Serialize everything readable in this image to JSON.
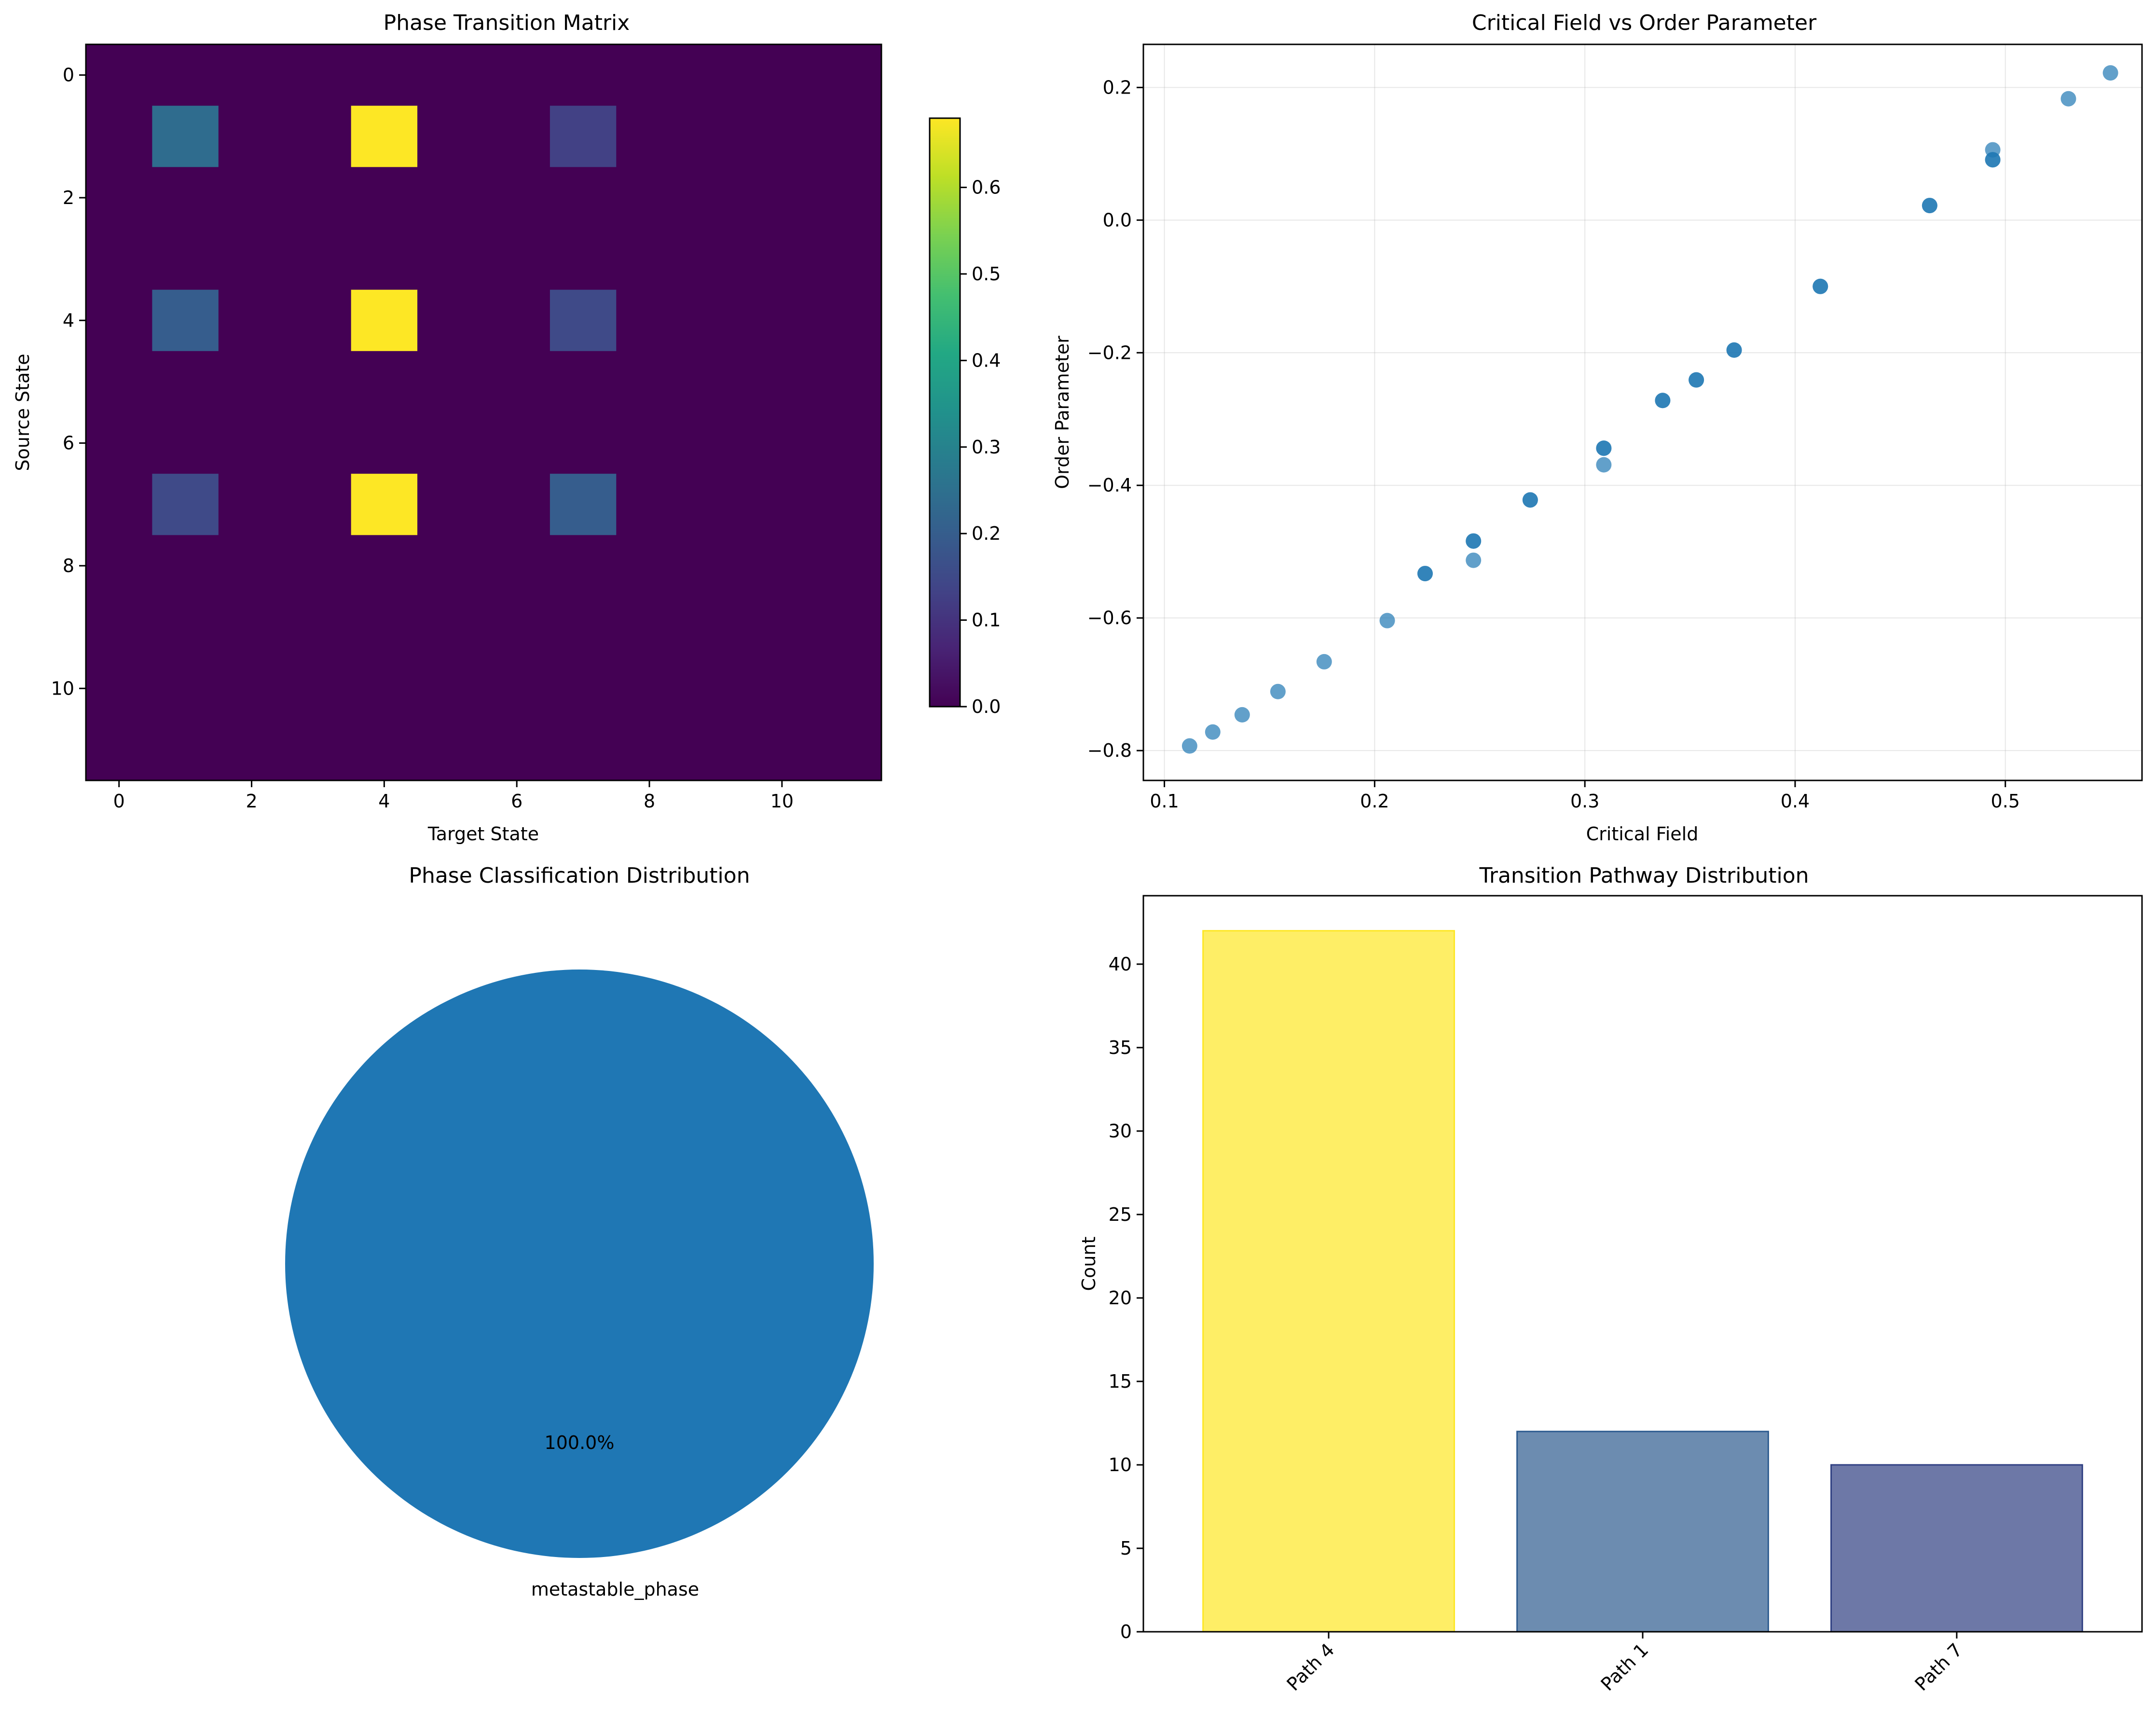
{
  "chart_data": [
    {
      "type": "heatmap",
      "title": "Phase Transition Matrix",
      "xlabel": "Target State",
      "ylabel": "Source State",
      "size": 12,
      "xticks": [
        0,
        2,
        4,
        6,
        8,
        10
      ],
      "yticks": [
        0,
        2,
        4,
        6,
        8,
        10
      ],
      "colormap": "viridis",
      "nonzero_cells": [
        {
          "row": 1,
          "col": 1,
          "value": 0.24
        },
        {
          "row": 1,
          "col": 4,
          "value": 0.68
        },
        {
          "row": 1,
          "col": 7,
          "value": 0.13
        },
        {
          "row": 4,
          "col": 1,
          "value": 0.2
        },
        {
          "row": 4,
          "col": 4,
          "value": 0.68
        },
        {
          "row": 4,
          "col": 7,
          "value": 0.15
        },
        {
          "row": 7,
          "col": 1,
          "value": 0.15
        },
        {
          "row": 7,
          "col": 4,
          "value": 0.68
        },
        {
          "row": 7,
          "col": 7,
          "value": 0.2
        }
      ],
      "colorbar": {
        "min": 0.0,
        "max": 0.68,
        "ticks": [
          "0.0",
          "0.1",
          "0.2",
          "0.3",
          "0.4",
          "0.5",
          "0.6"
        ]
      }
    },
    {
      "type": "scatter",
      "title": "Critical Field vs Order Parameter",
      "xlabel": "Critical Field",
      "ylabel": "Order Parameter",
      "xlim": [
        0.09,
        0.565
      ],
      "ylim": [
        -0.845,
        0.265
      ],
      "xticks": [
        "0.1",
        "0.2",
        "0.3",
        "0.4",
        "0.5"
      ],
      "yticks": [
        "−0.8",
        "−0.6",
        "−0.4",
        "−0.2",
        "0.0",
        "0.2"
      ],
      "grid": true,
      "color": "#1f77b4",
      "points": [
        [
          0.112,
          -0.793
        ],
        [
          0.123,
          -0.772
        ],
        [
          0.137,
          -0.746
        ],
        [
          0.154,
          -0.711
        ],
        [
          0.176,
          -0.666
        ],
        [
          0.206,
          -0.604
        ],
        [
          0.224,
          -0.533
        ],
        [
          0.224,
          -0.533
        ],
        [
          0.247,
          -0.484
        ],
        [
          0.247,
          -0.484
        ],
        [
          0.247,
          -0.513
        ],
        [
          0.274,
          -0.422
        ],
        [
          0.274,
          -0.422
        ],
        [
          0.309,
          -0.344
        ],
        [
          0.309,
          -0.344
        ],
        [
          0.309,
          -0.369
        ],
        [
          0.337,
          -0.272
        ],
        [
          0.337,
          -0.272
        ],
        [
          0.353,
          -0.241
        ],
        [
          0.353,
          -0.241
        ],
        [
          0.371,
          -0.196
        ],
        [
          0.371,
          -0.196
        ],
        [
          0.412,
          -0.1
        ],
        [
          0.412,
          -0.1
        ],
        [
          0.464,
          0.022
        ],
        [
          0.464,
          0.022
        ],
        [
          0.494,
          0.091
        ],
        [
          0.494,
          0.091
        ],
        [
          0.494,
          0.106
        ],
        [
          0.53,
          0.183
        ],
        [
          0.55,
          0.222
        ]
      ]
    },
    {
      "type": "pie",
      "title": "Phase Classification Distribution",
      "labels": [
        "metastable_phase"
      ],
      "values": [
        100
      ],
      "autopct_labels": [
        "100.0%"
      ],
      "colors": [
        "#1f77b4"
      ]
    },
    {
      "type": "bar",
      "title": "Transition Pathway Distribution",
      "xlabel": "",
      "ylabel": "Count",
      "categories": [
        "Path 4",
        "Path 1",
        "Path 7"
      ],
      "values": [
        42,
        12,
        10
      ],
      "colors": [
        "#fde725",
        "#2d5b8f",
        "#2f3f82"
      ],
      "ylim": [
        0,
        44.1
      ],
      "yticks": [
        "0",
        "5",
        "10",
        "15",
        "20",
        "25",
        "30",
        "35",
        "40"
      ]
    }
  ]
}
